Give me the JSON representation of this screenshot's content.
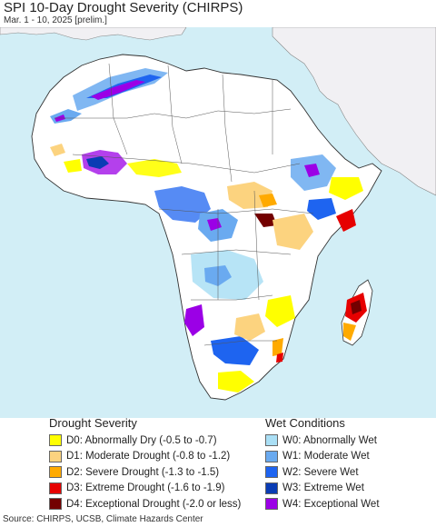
{
  "header": {
    "title": "SPI 10-Day Drought Severity (CHIRPS)",
    "subtitle": "Mar. 1 - 10, 2025 [prelim.]"
  },
  "map": {
    "region": "Africa",
    "colors": {
      "ocean": "#d2eef6",
      "land": "#ffffff",
      "outside_land": "#f1f0f3",
      "border": "#333333"
    }
  },
  "legend": {
    "drought": {
      "title": "Drought Severity",
      "items": [
        {
          "label": "D0: Abnormally Dry (-0.5 to -0.7)",
          "color": "#ffff00"
        },
        {
          "label": "D1: Moderate Drought (-0.8 to -1.2)",
          "color": "#fcd37f"
        },
        {
          "label": "D2: Severe Drought (-1.3 to -1.5)",
          "color": "#ffaa00"
        },
        {
          "label": "D3: Extreme Drought (-1.6 to -1.9)",
          "color": "#e60000"
        },
        {
          "label": "D4: Exceptional Drought (-2.0 or less)",
          "color": "#730000"
        }
      ]
    },
    "wet": {
      "title": "Wet Conditions",
      "items": [
        {
          "label": "W0: Abnormally Wet",
          "color": "#aadff5"
        },
        {
          "label": "W1: Moderate Wet",
          "color": "#6aaaf0"
        },
        {
          "label": "W2: Severe Wet",
          "color": "#1e64f0"
        },
        {
          "label": "W3: Extreme Wet",
          "color": "#0a3cb4"
        },
        {
          "label": "W4: Exceptional Wet",
          "color": "#9b00e6"
        }
      ]
    }
  },
  "footer": {
    "source": "Source: CHIRPS, UCSB, Climate Hazards Center"
  }
}
